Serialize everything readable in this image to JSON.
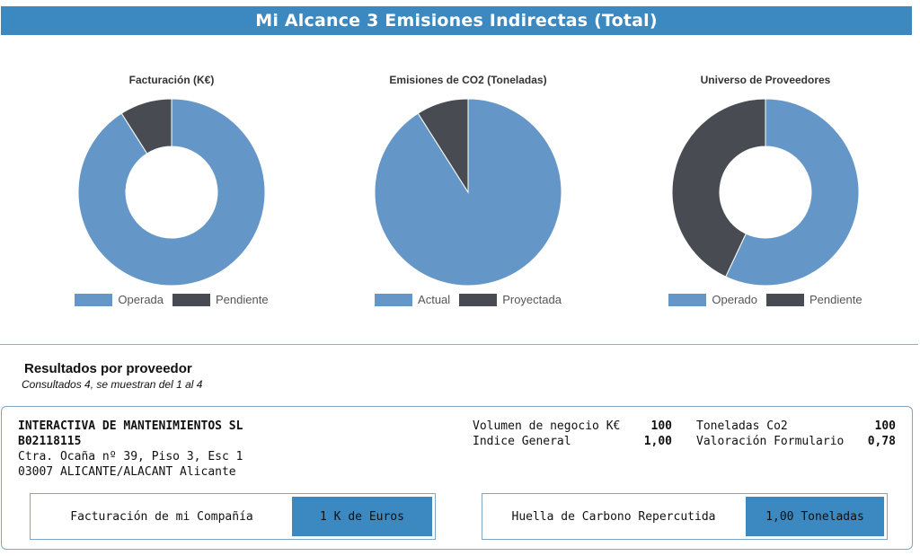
{
  "header": {
    "title": "Mi Alcance 3 Emisiones Indirectas (Total)"
  },
  "colors": {
    "primary": "#3c88c0",
    "series_light": "#6497c8",
    "series_dark": "#484c52"
  },
  "chart_data": [
    {
      "type": "pie",
      "title": "Facturación (K€)",
      "donut": true,
      "labels": [
        "Operada",
        "Pendiente"
      ],
      "values": [
        91,
        9
      ],
      "colors": [
        "#6497c8",
        "#484c52"
      ],
      "legend": "bottom"
    },
    {
      "type": "pie",
      "title": "Emisiones de CO2 (Toneladas)",
      "donut": false,
      "labels": [
        "Actual",
        "Proyectada"
      ],
      "values": [
        91,
        9
      ],
      "colors": [
        "#6497c8",
        "#484c52"
      ],
      "legend": "bottom"
    },
    {
      "type": "pie",
      "title": "Universo de Proveedores",
      "donut": true,
      "labels": [
        "Operado",
        "Pendiente"
      ],
      "values": [
        57,
        43
      ],
      "colors": [
        "#6497c8",
        "#484c52"
      ],
      "legend": "bottom"
    }
  ],
  "results": {
    "title": "Resultados por proveedor",
    "subtitle": "Consultados 4, se muestran del 1 al 4"
  },
  "supplier": {
    "name": "INTERACTIVA DE MANTENIMIENTOS SL",
    "id": "B02118115",
    "address1": "Ctra. Ocaña nº 39, Piso 3, Esc 1",
    "address2": "03007 ALICANTE/ALACANT Alicante",
    "metrics": {
      "volumen_label": "Volumen de negocio K€",
      "volumen_value": "100",
      "indice_label": "Indice General",
      "indice_value": "1,00",
      "toneladas_label": "Toneladas Co2",
      "toneladas_value": "100",
      "valoracion_label": "Valoración Formulario",
      "valoracion_value": "0,78"
    },
    "facturacion_label": "Facturación de mi Compañía",
    "facturacion_value": "1 K de Euros",
    "huella_label": "Huella de Carbono Repercutida",
    "huella_value": "1,00 Toneladas"
  }
}
